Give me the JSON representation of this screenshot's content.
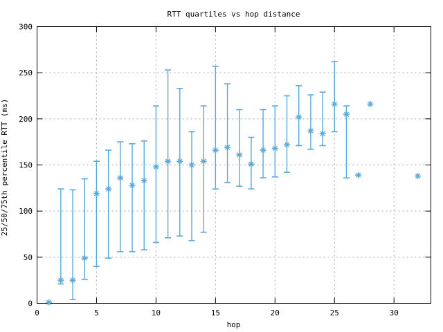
{
  "window": {
    "background": "#ffffff"
  },
  "chart_data": {
    "type": "scatter",
    "subtype": "median-with-quartile-errorbars",
    "title": "RTT quartiles vs hop distance",
    "xlabel": "hop",
    "ylabel": "25/50/75th percentile RTT (ms)",
    "xlim": [
      0,
      33
    ],
    "ylim": [
      0,
      300
    ],
    "xticks": [
      0,
      5,
      10,
      15,
      20,
      25,
      30
    ],
    "yticks": [
      0,
      50,
      100,
      150,
      200,
      250,
      300
    ],
    "grid": true,
    "legend": "none",
    "marker": "asterisk",
    "series_color": "#58A8D8",
    "grid_color": "#A6A6A6",
    "border_color": "#000000",
    "points": [
      {
        "hop": 1,
        "q25": null,
        "q50": 1,
        "q75": null
      },
      {
        "hop": 2,
        "q25": 21,
        "q50": 25,
        "q75": 124
      },
      {
        "hop": 3,
        "q25": 4,
        "q50": 25,
        "q75": 123
      },
      {
        "hop": 4,
        "q25": 26,
        "q50": 49,
        "q75": 135
      },
      {
        "hop": 5,
        "q25": 40,
        "q50": 119,
        "q75": 154
      },
      {
        "hop": 6,
        "q25": 49,
        "q50": 124,
        "q75": 166
      },
      {
        "hop": 7,
        "q25": 56,
        "q50": 136,
        "q75": 175
      },
      {
        "hop": 8,
        "q25": 56,
        "q50": 128,
        "q75": 173
      },
      {
        "hop": 9,
        "q25": 58,
        "q50": 133,
        "q75": 176
      },
      {
        "hop": 10,
        "q25": 66,
        "q50": 148,
        "q75": 214
      },
      {
        "hop": 11,
        "q25": 71,
        "q50": 154,
        "q75": 253
      },
      {
        "hop": 12,
        "q25": 73,
        "q50": 154,
        "q75": 233
      },
      {
        "hop": 13,
        "q25": 68,
        "q50": 150,
        "q75": 186
      },
      {
        "hop": 14,
        "q25": 77,
        "q50": 154,
        "q75": 214
      },
      {
        "hop": 15,
        "q25": 124,
        "q50": 166,
        "q75": 257
      },
      {
        "hop": 16,
        "q25": 131,
        "q50": 169,
        "q75": 238
      },
      {
        "hop": 17,
        "q25": 127,
        "q50": 161,
        "q75": 210
      },
      {
        "hop": 18,
        "q25": 124,
        "q50": 151,
        "q75": 180
      },
      {
        "hop": 19,
        "q25": 136,
        "q50": 166,
        "q75": 210
      },
      {
        "hop": 20,
        "q25": 137,
        "q50": 168,
        "q75": 214
      },
      {
        "hop": 21,
        "q25": 142,
        "q50": 172,
        "q75": 225
      },
      {
        "hop": 22,
        "q25": 171,
        "q50": 202,
        "q75": 236
      },
      {
        "hop": 23,
        "q25": 167,
        "q50": 187,
        "q75": 226
      },
      {
        "hop": 24,
        "q25": 171,
        "q50": 184,
        "q75": 229
      },
      {
        "hop": 25,
        "q25": 186,
        "q50": 216,
        "q75": 262
      },
      {
        "hop": 26,
        "q25": 136,
        "q50": 205,
        "q75": 214
      },
      {
        "hop": 27,
        "q25": null,
        "q50": 139,
        "q75": null
      },
      {
        "hop": 28,
        "q25": null,
        "q50": 216,
        "q75": null
      },
      {
        "hop": 32,
        "q25": null,
        "q50": 138,
        "q75": null
      }
    ]
  }
}
